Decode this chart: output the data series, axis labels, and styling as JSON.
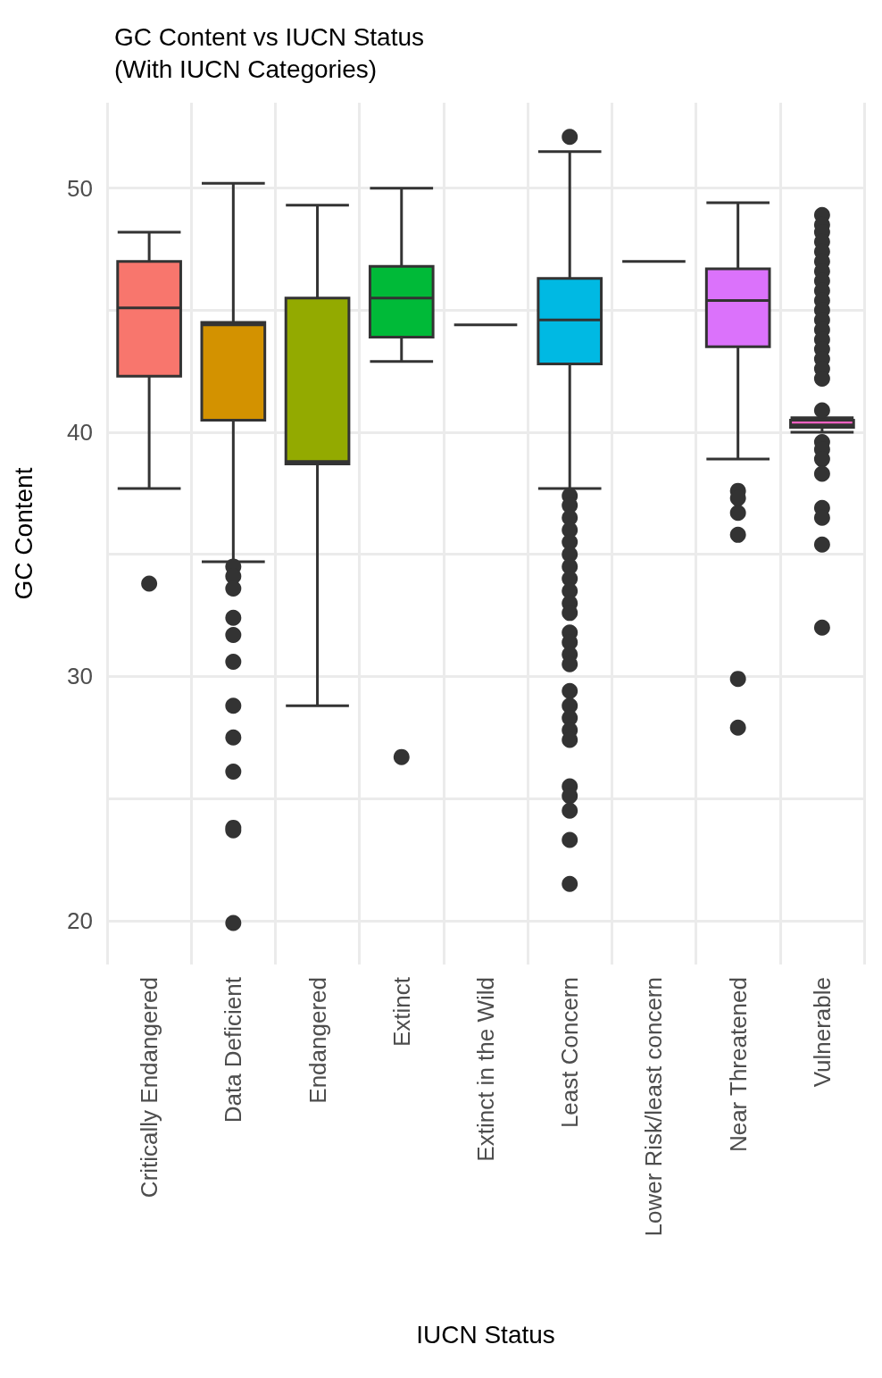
{
  "chart_data": {
    "type": "box",
    "title": "GC Content vs IUCN Status\n(With IUCN Categories)",
    "xlabel": "IUCN Status",
    "ylabel": "GC Content",
    "categories": [
      "Critically Endangered",
      "Data Deficient",
      "Endangered",
      "Extinct",
      "Extinct in the Wild",
      "Least Concern",
      "Lower Risk/least concern",
      "Near Threatened",
      "Vulnerable"
    ],
    "colors": [
      "#f8766d",
      "#d39200",
      "#93aa00",
      "#00ba38",
      "#333333",
      "#00b9e3",
      "#333333",
      "#db72fb",
      "#ff61c3"
    ],
    "boxes": [
      {
        "low": 37.7,
        "q1": 42.3,
        "median": 45.1,
        "q3": 47.0,
        "high": 48.2,
        "outliers": [
          33.8
        ]
      },
      {
        "low": 34.7,
        "q1": 40.5,
        "median": 44.4,
        "q3": 44.5,
        "high": 50.2,
        "outliers": [
          34.5,
          34.1,
          33.6,
          32.4,
          31.7,
          30.6,
          28.8,
          27.5,
          26.1,
          23.8,
          23.7,
          19.9
        ]
      },
      {
        "low": 28.8,
        "q1": 38.7,
        "median": 38.8,
        "q3": 45.5,
        "high": 49.3
      },
      {
        "low": 42.9,
        "q1": 43.9,
        "median": 45.5,
        "q3": 46.8,
        "high": 50.0,
        "outliers": [
          26.7
        ]
      },
      {
        "low": 44.4,
        "q1": 44.4,
        "median": 44.4,
        "q3": 44.4,
        "high": 44.4
      },
      {
        "low": 37.7,
        "q1": 42.8,
        "median": 44.6,
        "q3": 46.3,
        "high": 51.5,
        "outliers": [
          52.1,
          37.4,
          37.0,
          36.5,
          36.0,
          35.5,
          35.0,
          34.5,
          34.0,
          33.5,
          33.0,
          32.6,
          31.8,
          31.4,
          30.9,
          30.5,
          29.4,
          28.8,
          28.3,
          27.8,
          27.4,
          25.5,
          25.1,
          24.5,
          23.3,
          21.5
        ]
      },
      {
        "low": 47.0,
        "q1": 47.0,
        "median": 47.0,
        "q3": 47.0,
        "high": 47.0
      },
      {
        "low": 38.9,
        "q1": 43.5,
        "median": 45.4,
        "q3": 46.7,
        "high": 49.4,
        "outliers": [
          37.6,
          37.3,
          36.7,
          35.8,
          29.9,
          27.9
        ]
      },
      {
        "low": 40.0,
        "q1": 40.2,
        "median": 40.3,
        "q3": 40.5,
        "high": 40.6,
        "outliers": [
          48.9,
          48.5,
          48.2,
          47.8,
          47.4,
          47.0,
          46.6,
          46.2,
          45.8,
          45.4,
          45.0,
          44.6,
          44.2,
          43.8,
          43.4,
          43.0,
          42.6,
          42.2,
          40.9,
          39.6,
          39.3,
          38.9,
          38.3,
          36.9,
          36.5,
          35.4,
          32.0
        ]
      }
    ],
    "ylim": [
      18.2,
      53.5
    ],
    "yticks": [
      20,
      {
        "value": 25,
        "label": null
      },
      30,
      {
        "value": 35,
        "label": null
      },
      40,
      {
        "value": 45,
        "label": null
      },
      50
    ],
    "grid": true
  }
}
